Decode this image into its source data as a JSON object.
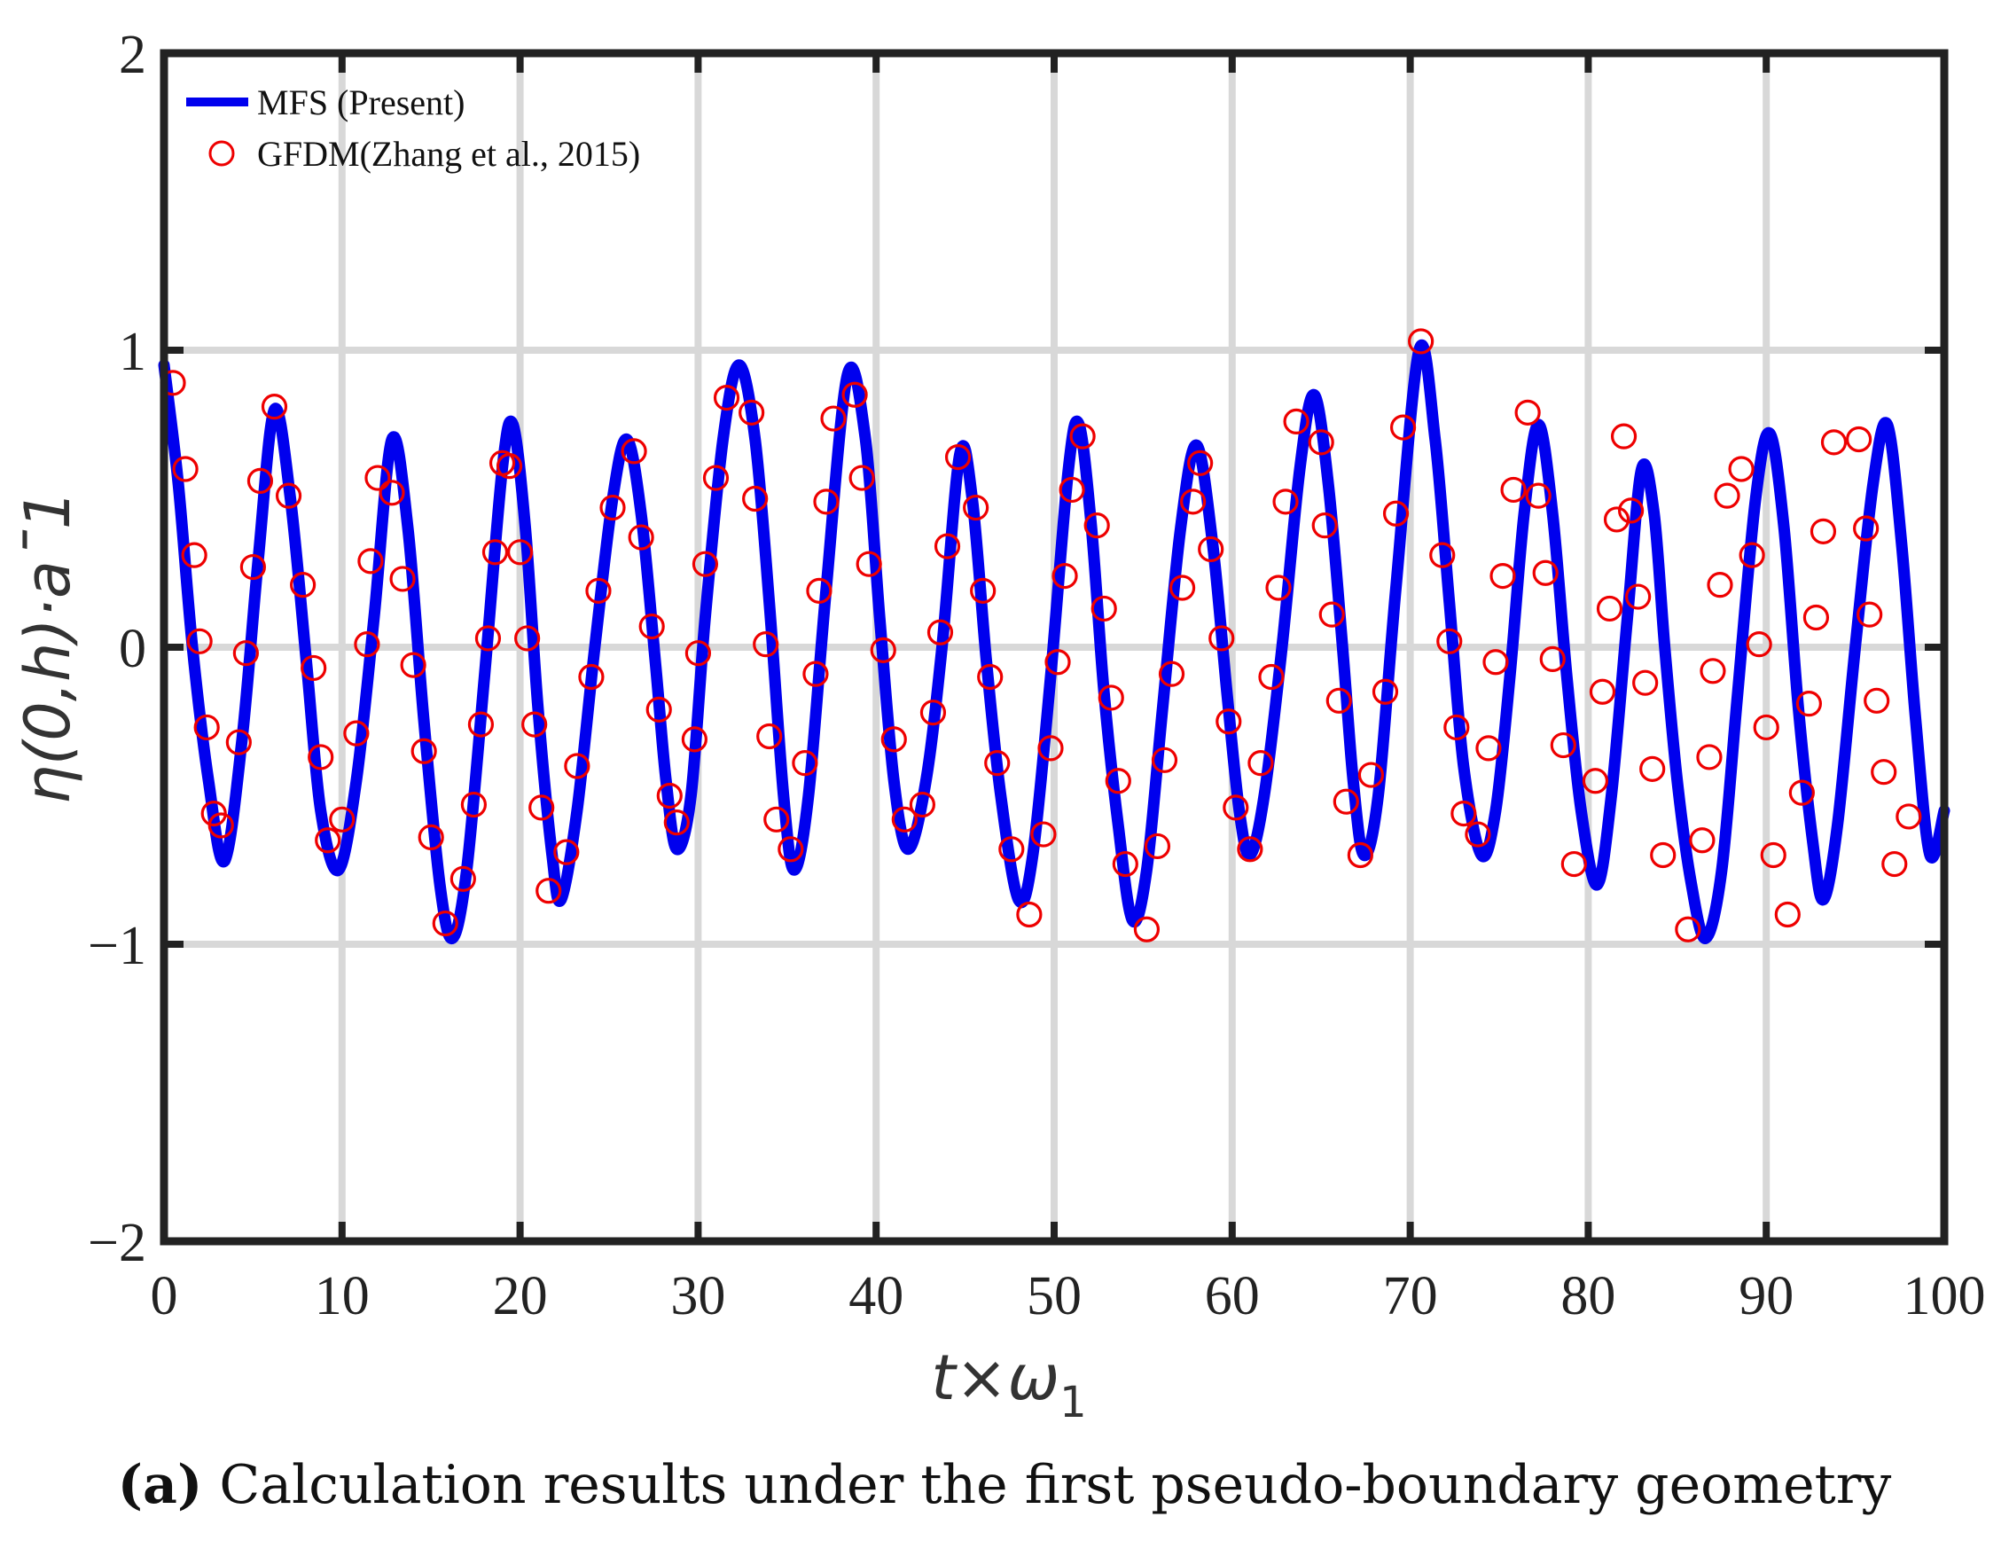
{
  "chart_data": {
    "type": "line",
    "xlabel_main": "t×ω",
    "xlabel_sub": "1",
    "ylabel": "η(0,h)·a¯1",
    "xlim": [
      0,
      100
    ],
    "ylim": [
      -2,
      2
    ],
    "xticks": [
      "0",
      "10",
      "20",
      "30",
      "40",
      "50",
      "60",
      "70",
      "80",
      "90",
      "100"
    ],
    "yticks": [
      "2",
      "1",
      "0",
      "−1",
      "−2"
    ],
    "grid": true,
    "legend_position": "top-left",
    "colors": {
      "line": "#0000ee",
      "markers": "#ee0000",
      "grid": "#d8d8d8",
      "frame": "#222222"
    },
    "series": [
      {
        "name": "MFS (Present)",
        "style": "line",
        "points": [
          [
            0,
            0.95
          ],
          [
            0.8,
            0.55
          ],
          [
            1.6,
            0
          ],
          [
            2.5,
            -0.45
          ],
          [
            3.4,
            -0.72
          ],
          [
            4.4,
            -0.3
          ],
          [
            5.3,
            0.3
          ],
          [
            6.2,
            0.8
          ],
          [
            7.1,
            0.5
          ],
          [
            8,
            -0.05
          ],
          [
            8.8,
            -0.55
          ],
          [
            9.8,
            -0.75
          ],
          [
            10.8,
            -0.45
          ],
          [
            11.8,
            0.1
          ],
          [
            12.8,
            0.7
          ],
          [
            13.7,
            0.4
          ],
          [
            14.6,
            -0.25
          ],
          [
            15.5,
            -0.8
          ],
          [
            16.2,
            -0.98
          ],
          [
            17,
            -0.75
          ],
          [
            18,
            -0.1
          ],
          [
            19,
            0.6
          ],
          [
            19.6,
            0.75
          ],
          [
            20.3,
            0.4
          ],
          [
            21,
            -0.2
          ],
          [
            21.8,
            -0.7
          ],
          [
            22.3,
            -0.85
          ],
          [
            23.2,
            -0.55
          ],
          [
            24.2,
            0
          ],
          [
            25.2,
            0.5
          ],
          [
            26,
            0.7
          ],
          [
            26.8,
            0.45
          ],
          [
            27.6,
            -0.05
          ],
          [
            28.2,
            -0.45
          ],
          [
            28.8,
            -0.68
          ],
          [
            29.6,
            -0.5
          ],
          [
            30.4,
            0.1
          ],
          [
            31.4,
            0.7
          ],
          [
            32.3,
            0.95
          ],
          [
            33.2,
            0.7
          ],
          [
            34,
            0.15
          ],
          [
            34.8,
            -0.5
          ],
          [
            35.4,
            -0.75
          ],
          [
            36.2,
            -0.5
          ],
          [
            37.2,
            0.2
          ],
          [
            38.4,
            0.92
          ],
          [
            39.4,
            0.7
          ],
          [
            40.2,
            0.1
          ],
          [
            41,
            -0.45
          ],
          [
            41.8,
            -0.68
          ],
          [
            42.8,
            -0.45
          ],
          [
            43.7,
            0
          ],
          [
            44.7,
            0.65
          ],
          [
            45.4,
            0.5
          ],
          [
            46.2,
            -0.05
          ],
          [
            47,
            -0.5
          ],
          [
            48,
            -0.85
          ],
          [
            48.8,
            -0.7
          ],
          [
            49.8,
            -0.1
          ],
          [
            50.8,
            0.6
          ],
          [
            51.4,
            0.75
          ],
          [
            52.1,
            0.4
          ],
          [
            52.8,
            -0.15
          ],
          [
            53.6,
            -0.6
          ],
          [
            54.4,
            -0.92
          ],
          [
            55.2,
            -0.75
          ],
          [
            56.1,
            -0.2
          ],
          [
            57.1,
            0.4
          ],
          [
            58,
            0.68
          ],
          [
            58.9,
            0.35
          ],
          [
            59.7,
            -0.15
          ],
          [
            60.4,
            -0.55
          ],
          [
            61,
            -0.7
          ],
          [
            61.8,
            -0.5
          ],
          [
            62.8,
            0
          ],
          [
            63.8,
            0.6
          ],
          [
            64.6,
            0.85
          ],
          [
            65.4,
            0.55
          ],
          [
            66.2,
            0
          ],
          [
            66.8,
            -0.45
          ],
          [
            67.4,
            -0.7
          ],
          [
            68.2,
            -0.5
          ],
          [
            69.2,
            0.2
          ],
          [
            70.5,
            1.0
          ],
          [
            71.4,
            0.7
          ],
          [
            72.2,
            0.15
          ],
          [
            73,
            -0.4
          ],
          [
            74,
            -0.7
          ],
          [
            74.8,
            -0.55
          ],
          [
            75.6,
            -0.1
          ],
          [
            76.4,
            0.45
          ],
          [
            77.2,
            0.75
          ],
          [
            78,
            0.45
          ],
          [
            78.8,
            -0.1
          ],
          [
            79.6,
            -0.55
          ],
          [
            80.5,
            -0.8
          ],
          [
            81.3,
            -0.5
          ],
          [
            82.2,
            0.1
          ],
          [
            83,
            0.6
          ],
          [
            83.7,
            0.45
          ],
          [
            84.3,
            0
          ],
          [
            85,
            -0.45
          ],
          [
            85.8,
            -0.8
          ],
          [
            86.6,
            -0.98
          ],
          [
            87.5,
            -0.75
          ],
          [
            88.4,
            -0.15
          ],
          [
            89.4,
            0.5
          ],
          [
            90.2,
            0.72
          ],
          [
            91,
            0.4
          ],
          [
            91.8,
            -0.2
          ],
          [
            92.6,
            -0.65
          ],
          [
            93.2,
            -0.85
          ],
          [
            94,
            -0.6
          ],
          [
            95,
            0
          ],
          [
            96,
            0.55
          ],
          [
            96.8,
            0.75
          ],
          [
            97.6,
            0.35
          ],
          [
            98.4,
            -0.25
          ],
          [
            99.2,
            -0.7
          ],
          [
            100,
            -0.55
          ]
        ]
      },
      {
        "name": "GFDM(Zhang et al., 2015)",
        "style": "marker-circle-open",
        "points": [
          [
            0.5,
            0.89
          ],
          [
            1.2,
            0.6
          ],
          [
            1.7,
            0.31
          ],
          [
            2,
            0.02
          ],
          [
            2.4,
            -0.27
          ],
          [
            2.8,
            -0.56
          ],
          [
            3.2,
            -0.6
          ],
          [
            4.2,
            -0.32
          ],
          [
            4.6,
            -0.02
          ],
          [
            5,
            0.27
          ],
          [
            5.4,
            0.56
          ],
          [
            6.2,
            0.81
          ],
          [
            7,
            0.51
          ],
          [
            7.8,
            0.21
          ],
          [
            8.4,
            -0.07
          ],
          [
            8.8,
            -0.37
          ],
          [
            9.2,
            -0.65
          ],
          [
            10,
            -0.58
          ],
          [
            10.8,
            -0.29
          ],
          [
            11.4,
            0.01
          ],
          [
            11.6,
            0.29
          ],
          [
            12,
            0.57
          ],
          [
            12.8,
            0.52
          ],
          [
            13.4,
            0.23
          ],
          [
            14,
            -0.06
          ],
          [
            14.6,
            -0.35
          ],
          [
            15,
            -0.64
          ],
          [
            15.8,
            -0.93
          ],
          [
            16.8,
            -0.78
          ],
          [
            17.4,
            -0.53
          ],
          [
            17.8,
            -0.26
          ],
          [
            18.2,
            0.03
          ],
          [
            18.6,
            0.32
          ],
          [
            19,
            0.62
          ],
          [
            19.4,
            0.61
          ],
          [
            20,
            0.32
          ],
          [
            20.4,
            0.03
          ],
          [
            20.8,
            -0.26
          ],
          [
            21.2,
            -0.54
          ],
          [
            21.6,
            -0.82
          ],
          [
            22.6,
            -0.69
          ],
          [
            23.2,
            -0.4
          ],
          [
            24,
            -0.1
          ],
          [
            24.4,
            0.19
          ],
          [
            25.2,
            0.47
          ],
          [
            26.4,
            0.66
          ],
          [
            26.8,
            0.37
          ],
          [
            27.4,
            0.07
          ],
          [
            27.8,
            -0.21
          ],
          [
            28.4,
            -0.5
          ],
          [
            28.8,
            -0.59
          ],
          [
            29.8,
            -0.31
          ],
          [
            30,
            -0.02
          ],
          [
            30.4,
            0.28
          ],
          [
            31,
            0.57
          ],
          [
            31.6,
            0.84
          ],
          [
            33,
            0.79
          ],
          [
            33.2,
            0.5
          ],
          [
            33.8,
            0.01
          ],
          [
            34,
            -0.3
          ],
          [
            34.4,
            -0.58
          ],
          [
            35.2,
            -0.68
          ],
          [
            36,
            -0.39
          ],
          [
            36.6,
            -0.09
          ],
          [
            36.8,
            0.19
          ],
          [
            37.2,
            0.49
          ],
          [
            37.6,
            0.77
          ],
          [
            38.8,
            0.85
          ],
          [
            39.2,
            0.57
          ],
          [
            39.6,
            0.28
          ],
          [
            40.4,
            -0.01
          ],
          [
            41,
            -0.31
          ],
          [
            41.6,
            -0.58
          ],
          [
            42.6,
            -0.53
          ],
          [
            43.2,
            -0.22
          ],
          [
            43.6,
            0.05
          ],
          [
            44,
            0.34
          ],
          [
            44.6,
            0.64
          ],
          [
            45.6,
            0.47
          ],
          [
            46,
            0.19
          ],
          [
            46.4,
            -0.1
          ],
          [
            46.8,
            -0.39
          ],
          [
            47.6,
            -0.68
          ],
          [
            48.6,
            -0.9
          ],
          [
            49.4,
            -0.63
          ],
          [
            49.8,
            -0.34
          ],
          [
            50.2,
            -0.05
          ],
          [
            50.6,
            0.24
          ],
          [
            51,
            0.53
          ],
          [
            51.6,
            0.71
          ],
          [
            52.4,
            0.41
          ],
          [
            52.8,
            0.13
          ],
          [
            53.2,
            -0.17
          ],
          [
            53.6,
            -0.45
          ],
          [
            54,
            -0.73
          ],
          [
            55.2,
            -0.95
          ],
          [
            55.8,
            -0.67
          ],
          [
            56.2,
            -0.38
          ],
          [
            56.6,
            -0.09
          ],
          [
            57.2,
            0.2
          ],
          [
            57.8,
            0.49
          ],
          [
            58.2,
            0.62
          ],
          [
            58.8,
            0.33
          ],
          [
            59.4,
            0.03
          ],
          [
            59.8,
            -0.25
          ],
          [
            60.2,
            -0.54
          ],
          [
            61,
            -0.68
          ],
          [
            61.6,
            -0.39
          ],
          [
            62.2,
            -0.1
          ],
          [
            62.6,
            0.2
          ],
          [
            63,
            0.49
          ],
          [
            63.6,
            0.76
          ],
          [
            65,
            0.69
          ],
          [
            65.2,
            0.41
          ],
          [
            65.6,
            0.11
          ],
          [
            66,
            -0.18
          ],
          [
            66.4,
            -0.52
          ],
          [
            67.2,
            -0.7
          ],
          [
            67.8,
            -0.43
          ],
          [
            68.6,
            -0.15
          ],
          [
            69.2,
            0.45
          ],
          [
            69.6,
            0.74
          ],
          [
            70.6,
            1.03
          ],
          [
            71.8,
            0.31
          ],
          [
            72.2,
            0.02
          ],
          [
            72.6,
            -0.27
          ],
          [
            73,
            -0.56
          ],
          [
            73.8,
            -0.63
          ],
          [
            74.4,
            -0.34
          ],
          [
            74.8,
            -0.05
          ],
          [
            75.2,
            0.24
          ],
          [
            75.8,
            0.53
          ],
          [
            76.6,
            0.79
          ],
          [
            77.2,
            0.51
          ],
          [
            77.6,
            0.25
          ],
          [
            78,
            -0.04
          ],
          [
            78.6,
            -0.33
          ],
          [
            79.2,
            -0.73
          ],
          [
            80.4,
            -0.45
          ],
          [
            80.8,
            -0.15
          ],
          [
            81.2,
            0.13
          ],
          [
            81.6,
            0.43
          ],
          [
            82,
            0.71
          ],
          [
            82.4,
            0.46
          ],
          [
            82.8,
            0.17
          ],
          [
            83.2,
            -0.12
          ],
          [
            83.6,
            -0.41
          ],
          [
            84.2,
            -0.7
          ],
          [
            85.6,
            -0.95
          ],
          [
            86.4,
            -0.65
          ],
          [
            86.8,
            -0.37
          ],
          [
            87,
            -0.08
          ],
          [
            87.4,
            0.21
          ],
          [
            87.8,
            0.51
          ],
          [
            88.6,
            0.6
          ],
          [
            89.2,
            0.31
          ],
          [
            89.6,
            0.01
          ],
          [
            90,
            -0.27
          ],
          [
            90.4,
            -0.7
          ],
          [
            91.2,
            -0.9
          ],
          [
            92,
            -0.49
          ],
          [
            92.4,
            -0.19
          ],
          [
            92.8,
            0.1
          ],
          [
            93.2,
            0.39
          ],
          [
            93.8,
            0.69
          ],
          [
            95.2,
            0.7
          ],
          [
            95.6,
            0.4
          ],
          [
            95.8,
            0.11
          ],
          [
            96.2,
            -0.18
          ],
          [
            96.6,
            -0.42
          ],
          [
            97.2,
            -0.73
          ],
          [
            98,
            -0.57
          ]
        ]
      }
    ]
  },
  "caption": {
    "label": "(a)",
    "text": "Calculation results under the first pseudo-boundary geometry"
  }
}
